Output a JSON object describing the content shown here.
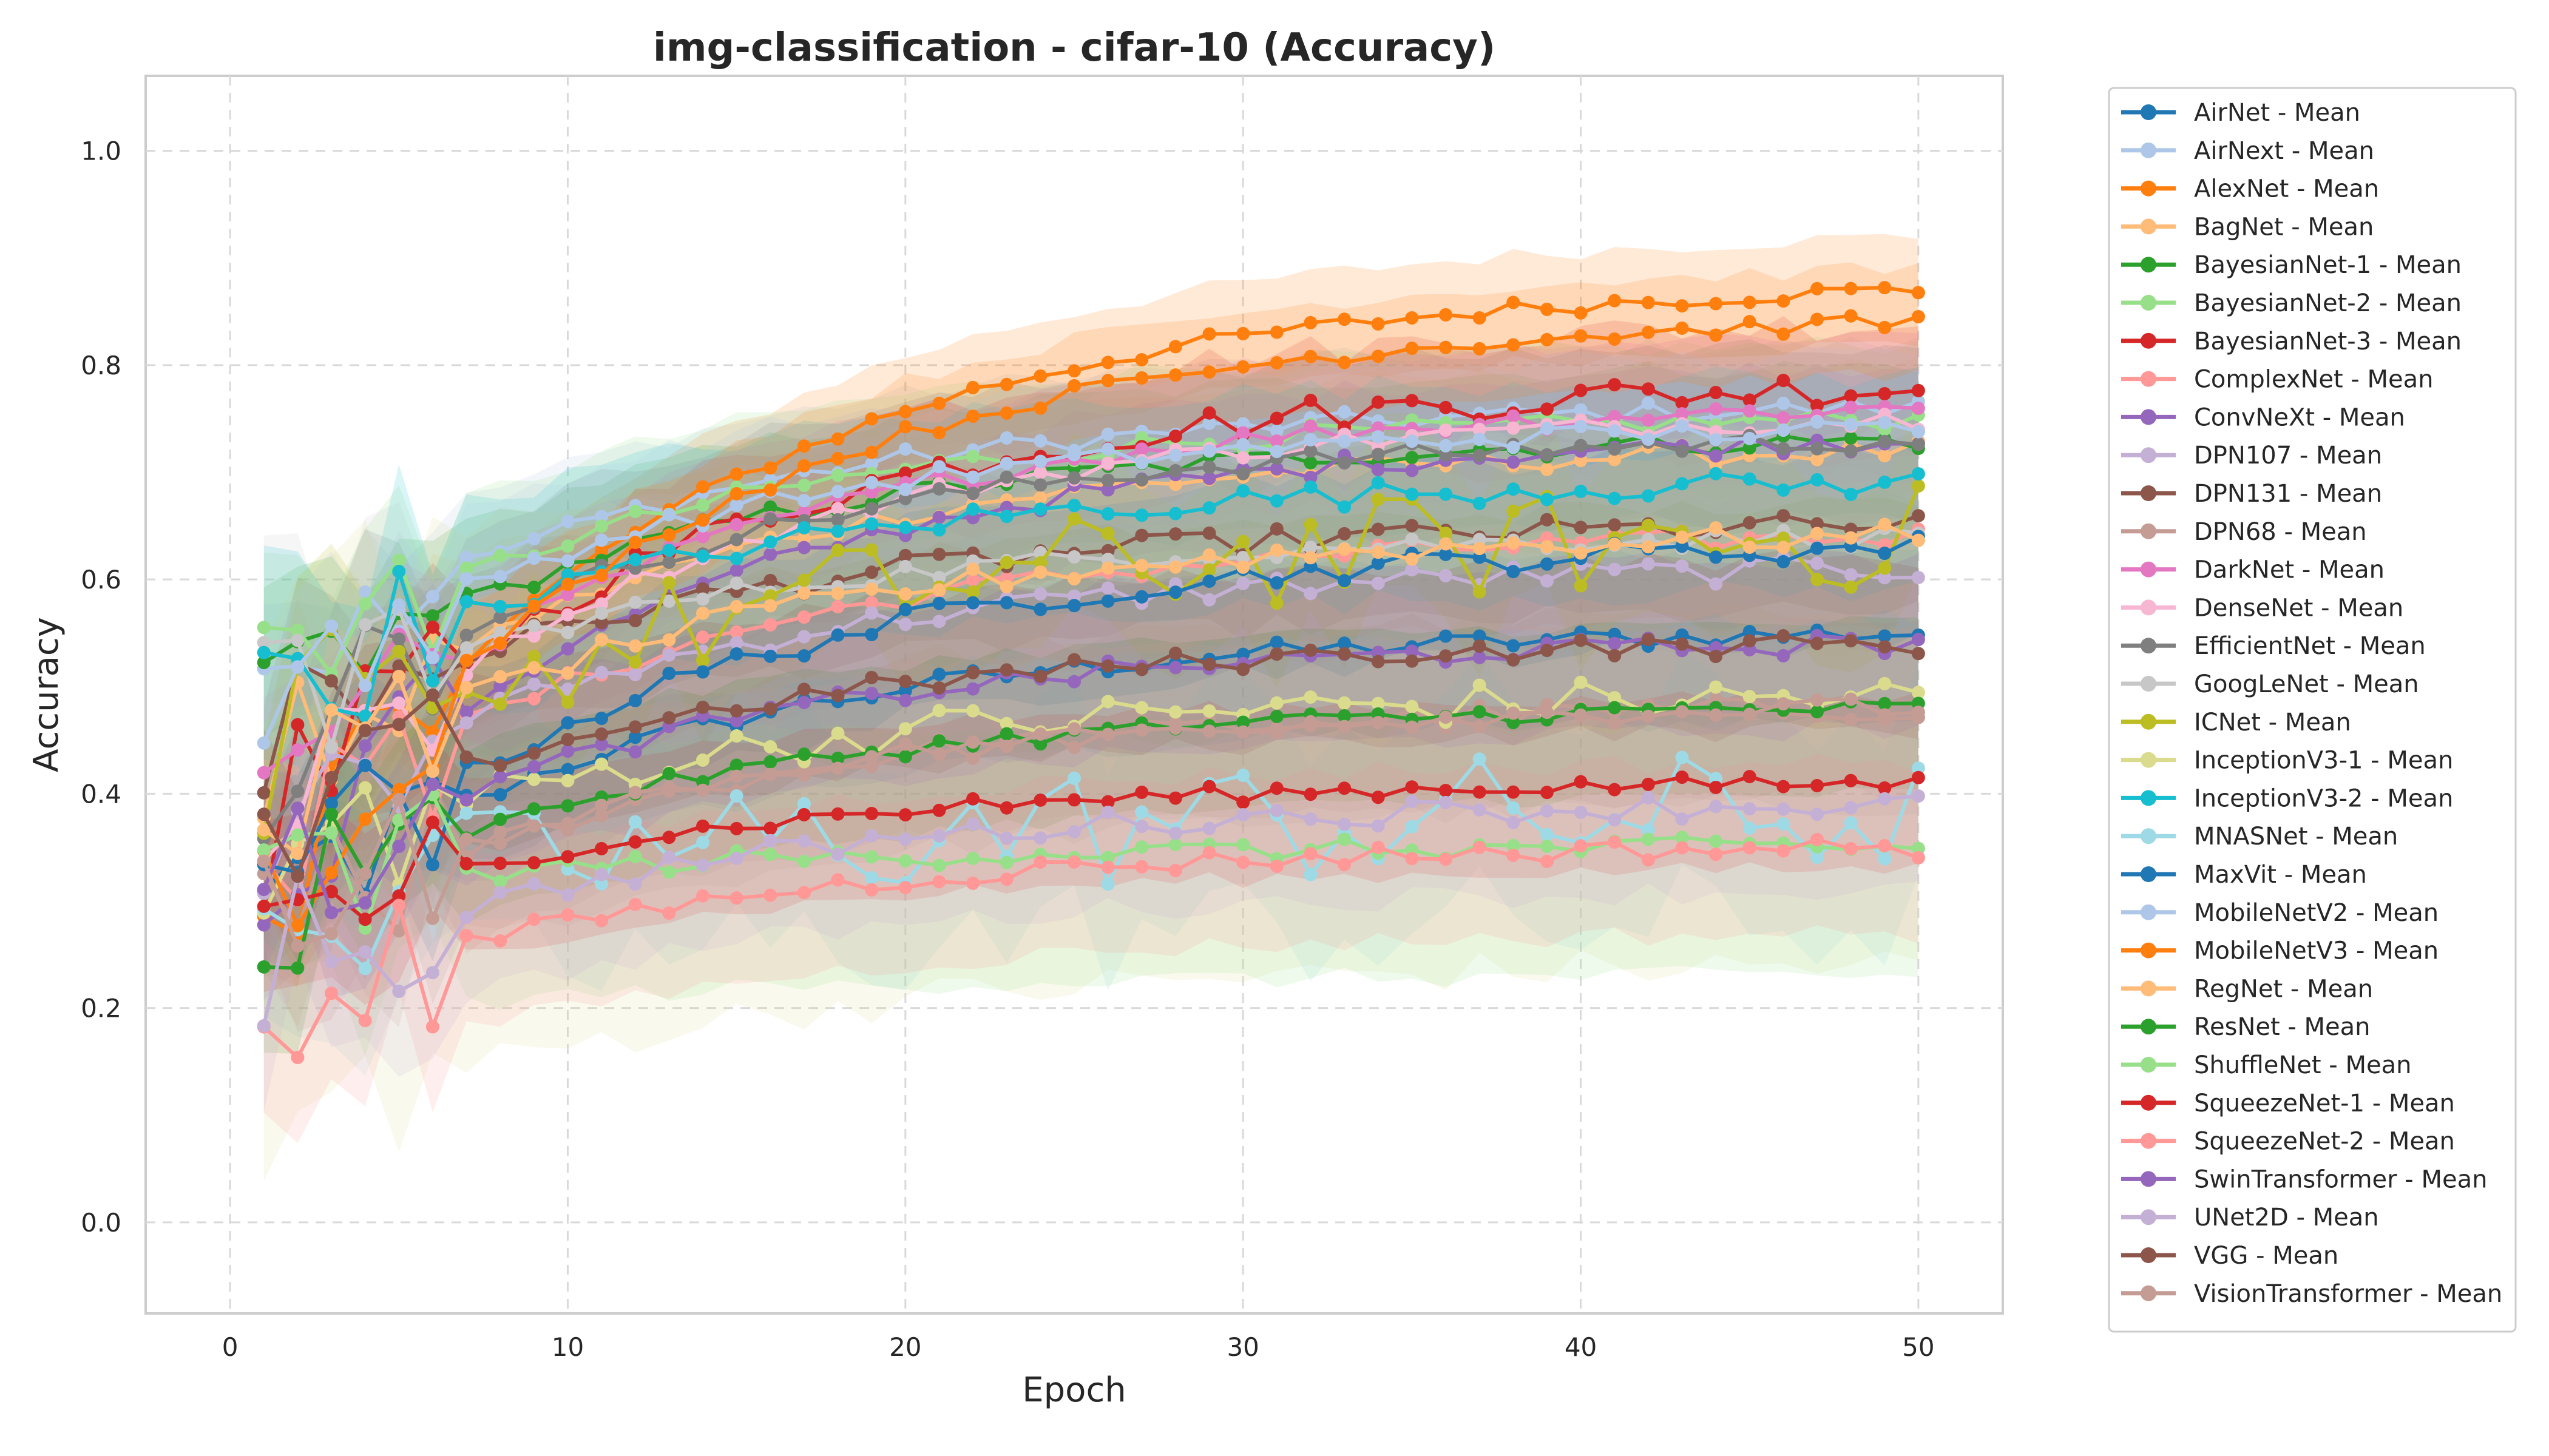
{
  "chart_data": {
    "type": "line",
    "title": "img-classification - cifar-10 (Accuracy)",
    "xlabel": "Epoch",
    "ylabel": "Accuracy",
    "xlim": [
      -2.5,
      52.5
    ],
    "ylim": [
      -0.085,
      1.07
    ],
    "xticks": [
      0,
      10,
      20,
      30,
      40,
      50
    ],
    "yticks": [
      0.0,
      0.2,
      0.4,
      0.6,
      0.8,
      1.0
    ],
    "grid": true,
    "legend_position": "outside-right",
    "epochs": [
      1,
      50
    ],
    "series": [
      {
        "name": "AirNet - Mean",
        "color": "#1f77b4",
        "start": 0.29,
        "end": 0.55,
        "band": 0.08,
        "noise": 0.005
      },
      {
        "name": "AirNext - Mean",
        "color": "#aec7e8",
        "start": 0.52,
        "end": 0.76,
        "band": 0.06,
        "noise": 0.005
      },
      {
        "name": "AlexNet - Mean",
        "color": "#ff7f0e",
        "start": 0.3,
        "end": 0.87,
        "band": 0.05,
        "noise": 0.004
      },
      {
        "name": "BagNet - Mean",
        "color": "#ffbb78",
        "start": 0.42,
        "end": 0.72,
        "band": 0.08,
        "noise": 0.005
      },
      {
        "name": "BayesianNet-1 - Mean",
        "color": "#2ca02c",
        "start": 0.48,
        "end": 0.73,
        "band": 0.07,
        "noise": 0.005
      },
      {
        "name": "BayesianNet-2 - Mean",
        "color": "#98df8a",
        "start": 0.51,
        "end": 0.75,
        "band": 0.07,
        "noise": 0.005
      },
      {
        "name": "BayesianNet-3 - Mean",
        "color": "#d62728",
        "start": 0.36,
        "end": 0.78,
        "band": 0.06,
        "noise": 0.008
      },
      {
        "name": "ComplexNet - Mean",
        "color": "#ff9896",
        "start": 0.35,
        "end": 0.64,
        "band": 0.08,
        "noise": 0.005
      },
      {
        "name": "ConvNeXt - Mean",
        "color": "#9467bd",
        "start": 0.32,
        "end": 0.73,
        "band": 0.07,
        "noise": 0.005
      },
      {
        "name": "DPN107 - Mean",
        "color": "#c5b0d5",
        "start": 0.38,
        "end": 0.61,
        "band": 0.07,
        "noise": 0.006
      },
      {
        "name": "DPN131 - Mean",
        "color": "#8c564b",
        "start": 0.45,
        "end": 0.65,
        "band": 0.08,
        "noise": 0.006
      },
      {
        "name": "DPN68 - Mean",
        "color": "#c49c94",
        "start": 0.26,
        "end": 0.48,
        "band": 0.09,
        "noise": 0.006
      },
      {
        "name": "DarkNet - Mean",
        "color": "#e377c2",
        "start": 0.38,
        "end": 0.76,
        "band": 0.07,
        "noise": 0.005
      },
      {
        "name": "DenseNet - Mean",
        "color": "#f7b6d2",
        "start": 0.37,
        "end": 0.75,
        "band": 0.07,
        "noise": 0.005
      },
      {
        "name": "EfficientNet - Mean",
        "color": "#7f7f7f",
        "start": 0.44,
        "end": 0.73,
        "band": 0.09,
        "noise": 0.005
      },
      {
        "name": "GoogLeNet - Mean",
        "color": "#c7c7c7",
        "start": 0.47,
        "end": 0.64,
        "band": 0.1,
        "noise": 0.005
      },
      {
        "name": "ICNet - Mean",
        "color": "#bcbd22",
        "start": 0.4,
        "end": 0.64,
        "band": 0.08,
        "noise": 0.025
      },
      {
        "name": "InceptionV3-1 - Mean",
        "color": "#dbdb8d",
        "start": 0.33,
        "end": 0.49,
        "band": 0.25,
        "noise": 0.01
      },
      {
        "name": "InceptionV3-2 - Mean",
        "color": "#17becf",
        "start": 0.49,
        "end": 0.69,
        "band": 0.1,
        "noise": 0.006
      },
      {
        "name": "MNASNet - Mean",
        "color": "#9edae5",
        "start": 0.29,
        "end": 0.38,
        "band": 0.1,
        "noise": 0.03
      },
      {
        "name": "MaxVit - Mean",
        "color": "#1f77b4",
        "start": 0.28,
        "end": 0.63,
        "band": 0.09,
        "noise": 0.006
      },
      {
        "name": "MobileNetV2 - Mean",
        "color": "#aec7e8",
        "start": 0.5,
        "end": 0.74,
        "band": 0.07,
        "noise": 0.005
      },
      {
        "name": "MobileNetV3 - Mean",
        "color": "#ff7f0e",
        "start": 0.31,
        "end": 0.84,
        "band": 0.05,
        "noise": 0.004
      },
      {
        "name": "RegNet - Mean",
        "color": "#ffbb78",
        "start": 0.39,
        "end": 0.64,
        "band": 0.08,
        "noise": 0.006
      },
      {
        "name": "ResNet - Mean",
        "color": "#2ca02c",
        "start": 0.29,
        "end": 0.48,
        "band": 0.08,
        "noise": 0.004
      },
      {
        "name": "ShuffleNet - Mean",
        "color": "#98df8a",
        "start": 0.31,
        "end": 0.35,
        "band": 0.12,
        "noise": 0.005
      },
      {
        "name": "SqueezeNet-1 - Mean",
        "color": "#d62728",
        "start": 0.28,
        "end": 0.41,
        "band": 0.08,
        "noise": 0.004
      },
      {
        "name": "SqueezeNet-2 - Mean",
        "color": "#ff9896",
        "start": 0.2,
        "end": 0.35,
        "band": 0.08,
        "noise": 0.005
      },
      {
        "name": "SwinTransformer - Mean",
        "color": "#9467bd",
        "start": 0.31,
        "end": 0.54,
        "band": 0.08,
        "noise": 0.005
      },
      {
        "name": "UNet2D - Mean",
        "color": "#c5b0d5",
        "start": 0.23,
        "end": 0.39,
        "band": 0.08,
        "noise": 0.006
      },
      {
        "name": "VGG - Mean",
        "color": "#8c564b",
        "start": 0.35,
        "end": 0.54,
        "band": 0.08,
        "noise": 0.005
      },
      {
        "name": "VisionTransformer - Mean",
        "color": "#c49c94",
        "start": 0.27,
        "end": 0.48,
        "band": 0.08,
        "noise": 0.005
      }
    ]
  }
}
